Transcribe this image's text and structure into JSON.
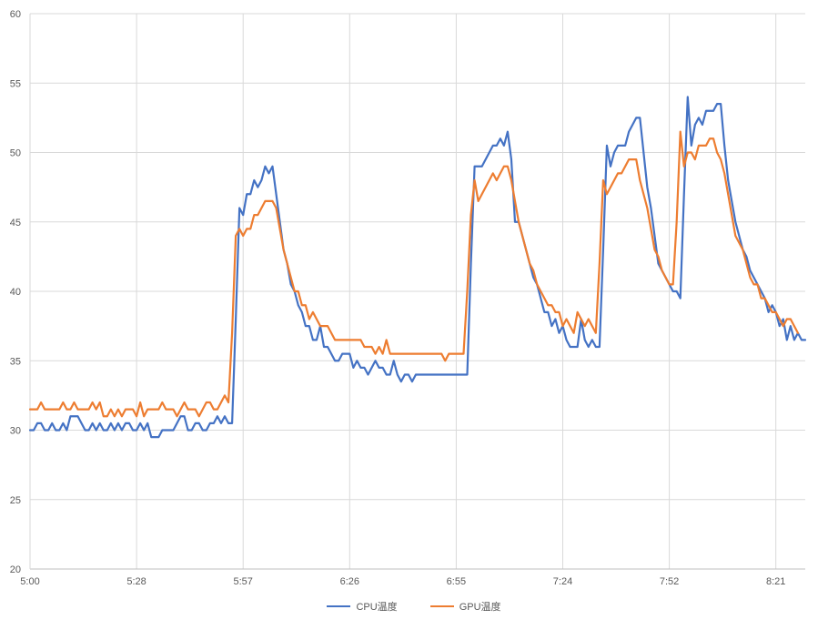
{
  "chart_data": {
    "type": "line",
    "title": "",
    "xlabel": "",
    "ylabel": "",
    "ylim": [
      20,
      60
    ],
    "yticks": [
      20,
      25,
      30,
      35,
      40,
      45,
      50,
      55,
      60
    ],
    "x_ticks": [
      "5:00",
      "5:28",
      "5:57",
      "6:26",
      "6:55",
      "7:24",
      "7:52",
      "8:21"
    ],
    "grid": "on",
    "legend_position": "bottom",
    "series": [
      {
        "name": "CPU温度",
        "color": "#4472C4",
        "values": [
          30,
          30,
          30.5,
          30.5,
          30,
          30,
          30.5,
          30,
          30,
          30.5,
          30,
          31,
          31,
          31,
          30.5,
          30,
          30,
          30.5,
          30,
          30.5,
          30,
          30,
          30.5,
          30,
          30.5,
          30,
          30.5,
          30.5,
          30,
          30,
          30.5,
          30,
          30.5,
          29.5,
          29.5,
          29.5,
          30,
          30,
          30,
          30,
          30.5,
          31,
          31,
          30,
          30,
          30.5,
          30.5,
          30,
          30,
          30.5,
          30.5,
          31,
          30.5,
          31,
          30.5,
          30.5,
          38,
          46,
          45.5,
          47,
          47,
          48,
          47.5,
          48,
          49,
          48.5,
          49,
          47,
          45,
          43,
          42,
          40.5,
          40,
          39,
          38.5,
          37.5,
          37.5,
          36.5,
          36.5,
          37.5,
          36,
          36,
          35.5,
          35,
          35,
          35.5,
          35.5,
          35.5,
          34.5,
          35,
          34.5,
          34.5,
          34,
          34.5,
          35,
          34.5,
          34.5,
          34,
          34,
          35,
          34,
          33.5,
          34,
          34,
          33.5,
          34,
          34,
          34,
          34,
          34,
          34,
          34,
          34,
          34,
          34,
          34,
          34,
          34,
          34,
          34,
          42,
          49,
          49,
          49,
          49.5,
          50,
          50.5,
          50.5,
          51,
          50.5,
          51.5,
          49.5,
          45,
          45,
          44,
          43,
          42,
          41,
          40.5,
          39.5,
          38.5,
          38.5,
          37.5,
          38,
          37,
          37.5,
          36.5,
          36,
          36,
          36,
          38,
          36.5,
          36,
          36.5,
          36,
          36,
          43,
          50.5,
          49,
          50,
          50.5,
          50.5,
          50.5,
          51.5,
          52,
          52.5,
          52.5,
          50,
          47.5,
          46,
          44,
          42,
          41.5,
          41,
          40.5,
          40,
          40,
          39.5,
          47,
          54,
          50.5,
          52,
          52.5,
          52,
          53,
          53,
          53,
          53.5,
          53.5,
          50.5,
          48,
          46.5,
          45,
          44,
          43,
          42.5,
          41.5,
          41,
          40.5,
          40,
          39.5,
          38.5,
          39,
          38.5,
          37.5,
          38,
          36.5,
          37.5,
          36.5,
          37,
          36.5,
          36.5
        ]
      },
      {
        "name": "GPU温度",
        "color": "#ED7D31",
        "values": [
          31.5,
          31.5,
          31.5,
          32,
          31.5,
          31.5,
          31.5,
          31.5,
          31.5,
          32,
          31.5,
          31.5,
          32,
          31.5,
          31.5,
          31.5,
          31.5,
          32,
          31.5,
          32,
          31,
          31,
          31.5,
          31,
          31.5,
          31,
          31.5,
          31.5,
          31.5,
          31,
          32,
          31,
          31.5,
          31.5,
          31.5,
          31.5,
          32,
          31.5,
          31.5,
          31.5,
          31,
          31.5,
          32,
          31.5,
          31.5,
          31.5,
          31,
          31.5,
          32,
          32,
          31.5,
          31.5,
          32,
          32.5,
          32,
          37,
          44,
          44.5,
          44,
          44.5,
          44.5,
          45.5,
          45.5,
          46,
          46.5,
          46.5,
          46.5,
          46,
          44.5,
          43,
          42,
          41,
          40,
          40,
          39,
          39,
          38,
          38.5,
          38,
          37.5,
          37.5,
          37.5,
          37,
          36.5,
          36.5,
          36.5,
          36.5,
          36.5,
          36.5,
          36.5,
          36.5,
          36,
          36,
          36,
          35.5,
          36,
          35.5,
          36.5,
          35.5,
          35.5,
          35.5,
          35.5,
          35.5,
          35.5,
          35.5,
          35.5,
          35.5,
          35.5,
          35.5,
          35.5,
          35.5,
          35.5,
          35.5,
          35,
          35.5,
          35.5,
          35.5,
          35.5,
          35.5,
          40,
          45.5,
          48,
          46.5,
          47,
          47.5,
          48,
          48.5,
          48,
          48.5,
          49,
          49,
          48,
          46.5,
          45,
          44,
          43,
          42,
          41.5,
          40.5,
          40,
          39.5,
          39,
          39,
          38.5,
          38.5,
          37.5,
          38,
          37.5,
          37,
          38.5,
          38,
          37.5,
          38,
          37.5,
          37,
          42,
          48,
          47,
          47.5,
          48,
          48.5,
          48.5,
          49,
          49.5,
          49.5,
          49.5,
          48,
          47,
          46,
          44.5,
          43,
          42.5,
          41.5,
          41,
          40.5,
          40.5,
          45,
          51.5,
          49,
          50,
          50,
          49.5,
          50.5,
          50.5,
          50.5,
          51,
          51,
          50,
          49.5,
          48.5,
          47,
          45.5,
          44,
          43.5,
          43,
          42,
          41,
          40.5,
          40.5,
          39.5,
          39.5,
          39,
          38.5,
          38.5,
          38,
          37.5,
          38,
          38,
          37.5,
          37
        ]
      }
    ]
  }
}
